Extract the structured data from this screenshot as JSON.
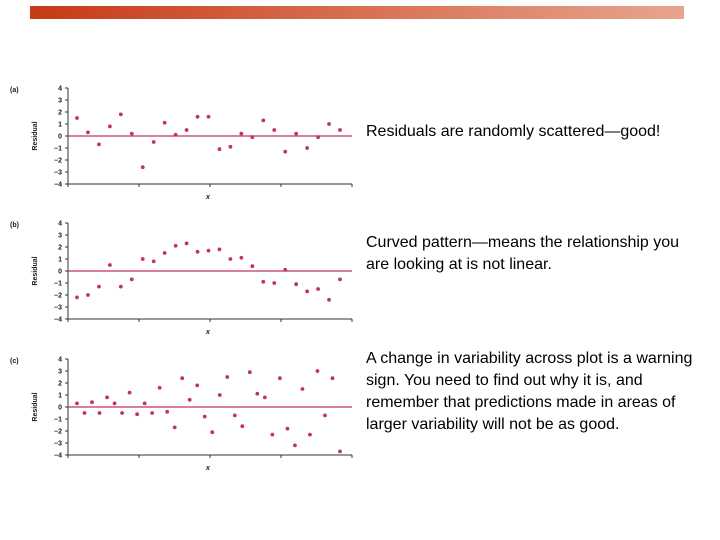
{
  "slide": {
    "accent_color": "#c63a16"
  },
  "captions": {
    "a": "Residuals are randomly scattered—good!",
    "b": "Curved pattern—means the relationship you are looking at is not linear.",
    "c": "A change in variability across plot is a warning sign. You need to find out why it is, and remember that predictions made in areas of larger variability will not be as good."
  },
  "chart_data": [
    {
      "type": "scatter",
      "panel_label": "(a)",
      "xlabel": "x",
      "ylabel": "Residual",
      "ylim": [
        -4,
        4
      ],
      "yticks": [
        "4",
        "3",
        "2",
        "1",
        "0",
        "−1",
        "−2",
        "−3",
        "−4"
      ],
      "reference_line_y": 0,
      "point_color": "#c0355a",
      "line_color": "#c0355a",
      "points": [
        [
          1,
          1.5
        ],
        [
          2,
          0.3
        ],
        [
          3,
          -0.7
        ],
        [
          4,
          0.8
        ],
        [
          5,
          1.8
        ],
        [
          6,
          0.2
        ],
        [
          7,
          -2.6
        ],
        [
          8,
          -0.5
        ],
        [
          9,
          1.1
        ],
        [
          10,
          0.1
        ],
        [
          11,
          0.5
        ],
        [
          12,
          1.6
        ],
        [
          13,
          1.6
        ],
        [
          14,
          -1.1
        ],
        [
          15,
          -0.9
        ],
        [
          16,
          0.2
        ],
        [
          17,
          -0.1
        ],
        [
          18,
          1.3
        ],
        [
          19,
          0.5
        ],
        [
          20,
          -1.3
        ],
        [
          21,
          0.2
        ],
        [
          22,
          -1.0
        ],
        [
          23,
          -0.1
        ],
        [
          24,
          1.0
        ],
        [
          25,
          0.5
        ]
      ]
    },
    {
      "type": "scatter",
      "panel_label": "(b)",
      "xlabel": "x",
      "ylabel": "Residual",
      "ylim": [
        -4,
        4
      ],
      "yticks": [
        "4",
        "3",
        "2",
        "1",
        "0",
        "−1",
        "−2",
        "−3",
        "−4"
      ],
      "reference_line_y": 0,
      "point_color": "#c0355a",
      "line_color": "#c0355a",
      "points": [
        [
          1,
          -2.2
        ],
        [
          2,
          -2.0
        ],
        [
          3,
          -1.3
        ],
        [
          4,
          0.5
        ],
        [
          5,
          -1.3
        ],
        [
          6,
          -0.7
        ],
        [
          7,
          1.0
        ],
        [
          8,
          0.8
        ],
        [
          9,
          1.5
        ],
        [
          10,
          2.1
        ],
        [
          11,
          2.3
        ],
        [
          12,
          1.6
        ],
        [
          13,
          1.7
        ],
        [
          14,
          1.8
        ],
        [
          15,
          1.0
        ],
        [
          16,
          1.1
        ],
        [
          17,
          0.4
        ],
        [
          18,
          -0.9
        ],
        [
          19,
          -1.0
        ],
        [
          20,
          0.1
        ],
        [
          21,
          -1.1
        ],
        [
          22,
          -1.7
        ],
        [
          23,
          -1.5
        ],
        [
          24,
          -2.4
        ],
        [
          25,
          -0.7
        ]
      ]
    },
    {
      "type": "scatter",
      "panel_label": "(c)",
      "xlabel": "x",
      "ylabel": "Residual",
      "ylim": [
        -4,
        4
      ],
      "yticks": [
        "4",
        "3",
        "2",
        "1",
        "0",
        "−1",
        "−2",
        "−3",
        "−4"
      ],
      "reference_line_y": 0,
      "point_color": "#c0355a",
      "line_color": "#c0355a",
      "points": [
        [
          1,
          0.3
        ],
        [
          2,
          -0.5
        ],
        [
          3,
          0.4
        ],
        [
          4,
          -0.5
        ],
        [
          5,
          0.8
        ],
        [
          6,
          0.3
        ],
        [
          7,
          -0.5
        ],
        [
          8,
          1.2
        ],
        [
          9,
          -0.6
        ],
        [
          10,
          0.3
        ],
        [
          11,
          -0.5
        ],
        [
          12,
          1.6
        ],
        [
          13,
          -0.4
        ],
        [
          14,
          -1.7
        ],
        [
          15,
          2.4
        ],
        [
          16,
          0.6
        ],
        [
          17,
          1.8
        ],
        [
          18,
          -0.8
        ],
        [
          19,
          -2.1
        ],
        [
          20,
          1.0
        ],
        [
          21,
          2.5
        ],
        [
          22,
          -0.7
        ],
        [
          23,
          -1.6
        ],
        [
          24,
          2.9
        ],
        [
          25,
          1.1
        ],
        [
          26,
          0.8
        ],
        [
          27,
          -2.3
        ],
        [
          28,
          2.4
        ],
        [
          29,
          -1.8
        ],
        [
          30,
          -3.2
        ],
        [
          31,
          1.5
        ],
        [
          32,
          -2.3
        ],
        [
          33,
          3.0
        ],
        [
          34,
          -0.7
        ],
        [
          35,
          2.4
        ],
        [
          36,
          -3.7
        ]
      ]
    }
  ]
}
